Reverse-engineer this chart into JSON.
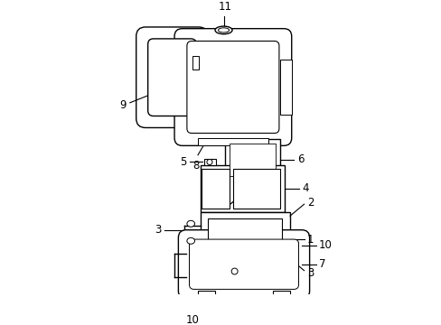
{
  "background_color": "#ffffff",
  "line_color": "#000000",
  "lw": 1.0,
  "fig_width": 4.89,
  "fig_height": 3.6,
  "dpi": 100
}
